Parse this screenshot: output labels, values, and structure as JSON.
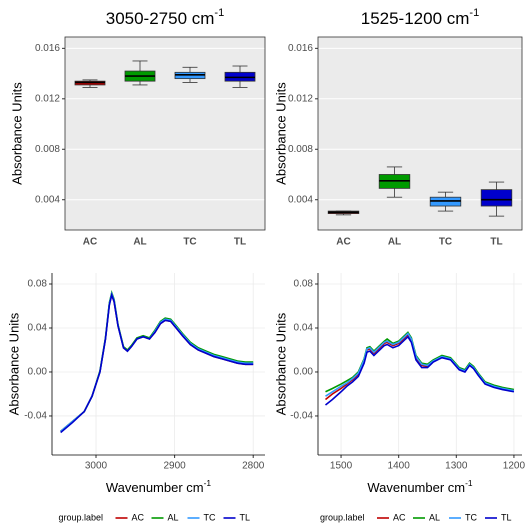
{
  "chart_data": [
    {
      "type": "box",
      "title": "3050-2750 cm",
      "title_superscript": "-1",
      "ylabel": "Absorbance Units",
      "categories": [
        "AC",
        "AL",
        "TC",
        "TL"
      ],
      "colors": [
        "#c00000",
        "#009a00",
        "#3399ff",
        "#0000cc"
      ],
      "boxes": [
        {
          "low": 0.0129,
          "q1": 0.0131,
          "median": 0.0133,
          "q3": 0.0134,
          "high": 0.0135
        },
        {
          "low": 0.0131,
          "q1": 0.0134,
          "median": 0.0138,
          "q3": 0.0142,
          "high": 0.015
        },
        {
          "low": 0.0133,
          "q1": 0.0136,
          "median": 0.0139,
          "q3": 0.0141,
          "high": 0.0145
        },
        {
          "low": 0.0129,
          "q1": 0.0134,
          "median": 0.0137,
          "q3": 0.0141,
          "high": 0.0146
        }
      ],
      "ylim": [
        0.0016,
        0.0169
      ],
      "yticks": [
        0.004,
        0.008,
        0.012,
        0.016
      ],
      "grid": true
    },
    {
      "type": "box",
      "title": "1525-1200 cm",
      "title_superscript": "-1",
      "ylabel": "Absorbance Units",
      "categories": [
        "AC",
        "AL",
        "TC",
        "TL"
      ],
      "colors": [
        "#c00000",
        "#009a00",
        "#3399ff",
        "#0000cc"
      ],
      "boxes": [
        {
          "low": 0.0028,
          "q1": 0.0029,
          "median": 0.003,
          "q3": 0.0031,
          "high": 0.0031
        },
        {
          "low": 0.0042,
          "q1": 0.0049,
          "median": 0.0055,
          "q3": 0.006,
          "high": 0.0066
        },
        {
          "low": 0.0031,
          "q1": 0.0035,
          "median": 0.0039,
          "q3": 0.0042,
          "high": 0.0046
        },
        {
          "low": 0.0027,
          "q1": 0.0035,
          "median": 0.004,
          "q3": 0.0048,
          "high": 0.0054
        }
      ],
      "ylim": [
        0.0016,
        0.0169
      ],
      "yticks": [
        0.004,
        0.008,
        0.012,
        0.016
      ],
      "grid": true
    },
    {
      "type": "line",
      "ylabel": "Absorbance Units",
      "xlabel": "Wavenumber cm",
      "xlabel_superscript": "-1",
      "legend_title": "group.label",
      "x": [
        3045,
        3030,
        3015,
        3005,
        2995,
        2988,
        2983,
        2980,
        2977,
        2972,
        2965,
        2960,
        2955,
        2948,
        2940,
        2932,
        2925,
        2918,
        2912,
        2905,
        2898,
        2890,
        2880,
        2870,
        2860,
        2850,
        2840,
        2830,
        2820,
        2810,
        2800
      ],
      "series": [
        {
          "name": "AC",
          "color": "#c00000",
          "values": [
            -0.054,
            -0.045,
            -0.036,
            -0.022,
            0.0,
            0.03,
            0.062,
            0.07,
            0.064,
            0.042,
            0.022,
            0.019,
            0.023,
            0.03,
            0.032,
            0.03,
            0.036,
            0.044,
            0.047,
            0.046,
            0.04,
            0.033,
            0.025,
            0.02,
            0.017,
            0.014,
            0.012,
            0.01,
            0.008,
            0.007,
            0.007
          ]
        },
        {
          "name": "AL",
          "color": "#009a00",
          "values": [
            -0.054,
            -0.045,
            -0.036,
            -0.022,
            0.001,
            0.031,
            0.063,
            0.072,
            0.066,
            0.043,
            0.023,
            0.02,
            0.024,
            0.031,
            0.033,
            0.031,
            0.038,
            0.046,
            0.049,
            0.048,
            0.042,
            0.035,
            0.027,
            0.022,
            0.019,
            0.016,
            0.014,
            0.012,
            0.01,
            0.009,
            0.009
          ]
        },
        {
          "name": "TC",
          "color": "#3399ff",
          "values": [
            -0.054,
            -0.045,
            -0.036,
            -0.022,
            0.0,
            0.03,
            0.062,
            0.071,
            0.065,
            0.042,
            0.022,
            0.019,
            0.023,
            0.03,
            0.032,
            0.03,
            0.037,
            0.045,
            0.048,
            0.047,
            0.041,
            0.034,
            0.026,
            0.021,
            0.018,
            0.015,
            0.013,
            0.011,
            0.009,
            0.008,
            0.008
          ]
        },
        {
          "name": "TL",
          "color": "#0000cc",
          "values": [
            -0.055,
            -0.046,
            -0.036,
            -0.022,
            0.0,
            0.03,
            0.061,
            0.07,
            0.064,
            0.042,
            0.022,
            0.019,
            0.023,
            0.03,
            0.032,
            0.03,
            0.036,
            0.044,
            0.047,
            0.046,
            0.04,
            0.033,
            0.025,
            0.02,
            0.017,
            0.014,
            0.012,
            0.01,
            0.008,
            0.007,
            0.007
          ]
        }
      ],
      "xlim": [
        3056,
        2785
      ],
      "xticks": [
        3000,
        2900,
        2800
      ],
      "ylim": [
        -0.0755,
        0.09
      ],
      "yticks": [
        -0.04,
        {
          "value": 0,
          "label": "0.00"
        },
        0.04,
        0.08
      ],
      "grid": true
    },
    {
      "type": "line",
      "ylabel": "Absorbance Units",
      "xlabel": "Wavenumber cm",
      "xlabel_superscript": "-1",
      "legend_title": "group.label",
      "x": [
        1527,
        1515,
        1500,
        1490,
        1480,
        1470,
        1460,
        1455,
        1450,
        1443,
        1435,
        1425,
        1420,
        1410,
        1400,
        1390,
        1384,
        1378,
        1370,
        1360,
        1350,
        1340,
        1325,
        1310,
        1295,
        1285,
        1277,
        1270,
        1262,
        1250,
        1235,
        1220,
        1200
      ],
      "series": [
        {
          "name": "AC",
          "color": "#c00000",
          "values": [
            -0.025,
            -0.02,
            -0.015,
            -0.011,
            -0.007,
            -0.002,
            0.01,
            0.02,
            0.021,
            0.017,
            0.021,
            0.026,
            0.027,
            0.024,
            0.026,
            0.031,
            0.034,
            0.029,
            0.013,
            0.006,
            0.005,
            0.01,
            0.014,
            0.012,
            0.003,
            0.001,
            0.007,
            0.004,
            -0.002,
            -0.01,
            -0.013,
            -0.015,
            -0.017
          ]
        },
        {
          "name": "AL",
          "color": "#009a00",
          "values": [
            -0.018,
            -0.015,
            -0.011,
            -0.008,
            -0.005,
            0.0,
            0.012,
            0.022,
            0.023,
            0.019,
            0.023,
            0.028,
            0.03,
            0.026,
            0.028,
            0.033,
            0.036,
            0.031,
            0.015,
            0.008,
            0.007,
            0.011,
            0.015,
            0.013,
            0.004,
            0.002,
            0.008,
            0.005,
            -0.001,
            -0.009,
            -0.012,
            -0.014,
            -0.016
          ]
        },
        {
          "name": "TC",
          "color": "#3399ff",
          "values": [
            -0.022,
            -0.018,
            -0.013,
            -0.01,
            -0.006,
            -0.001,
            0.011,
            0.021,
            0.022,
            0.018,
            0.022,
            0.027,
            0.028,
            0.025,
            0.027,
            0.032,
            0.035,
            0.03,
            0.014,
            0.007,
            0.006,
            0.01,
            0.014,
            0.012,
            0.003,
            0.001,
            0.007,
            0.004,
            -0.002,
            -0.01,
            -0.013,
            -0.015,
            -0.017
          ]
        },
        {
          "name": "TL",
          "color": "#0000cc",
          "values": [
            -0.03,
            -0.025,
            -0.018,
            -0.013,
            -0.009,
            -0.004,
            0.008,
            0.018,
            0.019,
            0.015,
            0.019,
            0.024,
            0.025,
            0.022,
            0.024,
            0.029,
            0.032,
            0.027,
            0.011,
            0.004,
            0.004,
            0.009,
            0.013,
            0.011,
            0.002,
            0.0,
            0.006,
            0.003,
            -0.003,
            -0.011,
            -0.014,
            -0.016,
            -0.018
          ]
        }
      ],
      "xlim": [
        1540,
        1186
      ],
      "xticks": [
        1500,
        1400,
        1300,
        1200
      ],
      "ylim": [
        -0.0755,
        0.09
      ],
      "yticks": [
        -0.04,
        {
          "value": 0,
          "label": "0.00"
        },
        0.04,
        0.08
      ],
      "grid": true
    }
  ]
}
